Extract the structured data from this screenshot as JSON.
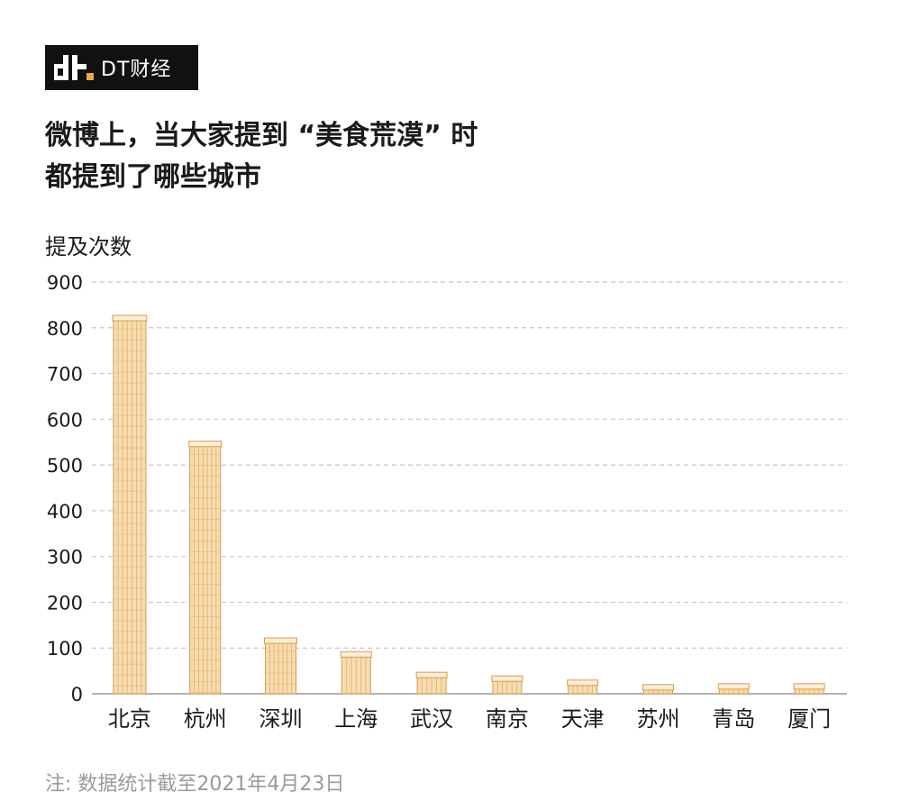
{
  "brand": {
    "logo_text": "DT财经"
  },
  "colors": {
    "accent": "#e6a94f",
    "accent_light": "#f6dcb2",
    "building_outline": "#d99b4a",
    "axis": "#999999",
    "gridline": "#c8c8c8",
    "text": "#1a1a1a",
    "footnote": "#9a9a9a"
  },
  "chart_data": {
    "type": "bar",
    "title_lines": [
      "微博上，当大家提到 “美食荒漠” 时",
      "都提到了哪些城市"
    ],
    "ylabel": "提及次数",
    "xlabel": "",
    "categories": [
      "北京",
      "杭州",
      "深圳",
      "上海",
      "武汉",
      "南京",
      "天津",
      "苏州",
      "青岛",
      "厦门"
    ],
    "values": [
      825,
      550,
      120,
      90,
      45,
      37,
      28,
      18,
      20,
      20
    ],
    "ylim": [
      0,
      900
    ],
    "yticks": [
      0,
      100,
      200,
      300,
      400,
      500,
      600,
      700,
      800,
      900
    ],
    "grid": true
  },
  "footnote": "注: 数据统计截至2021年4月23日"
}
